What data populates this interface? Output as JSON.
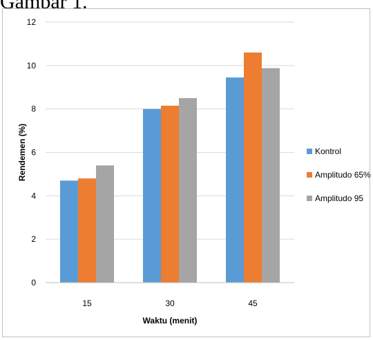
{
  "heading": "Gambar 1.",
  "chart_data": {
    "type": "bar",
    "categories": [
      "15",
      "30",
      "45"
    ],
    "series": [
      {
        "name": "Kontrol",
        "values": [
          4.7,
          8.0,
          9.45
        ],
        "color": "#5b9bd5"
      },
      {
        "name": "Amplitudo 65%",
        "values": [
          4.8,
          8.15,
          10.6
        ],
        "color": "#ed7d31"
      },
      {
        "name": "Amplitudo 95",
        "values": [
          5.4,
          8.5,
          9.88
        ],
        "color": "#a5a5a5"
      }
    ],
    "title": "",
    "xlabel": "Waktu (menit)",
    "ylabel": "Rendemen (%)",
    "ylim": [
      0,
      12
    ],
    "yticks": [
      "0",
      "2",
      "4",
      "6",
      "8",
      "10",
      "12"
    ],
    "grid": true,
    "legend_position": "right"
  }
}
